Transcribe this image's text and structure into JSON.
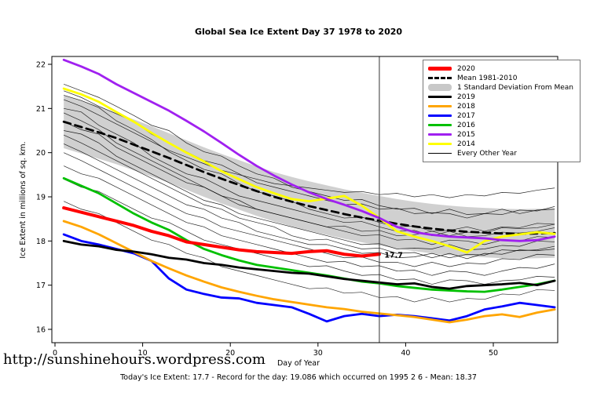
{
  "footer": {
    "url": "http://sunshinehours.wordpress.com",
    "caption": "Today's Ice Extent: 17.7 - Record for the day: 19.086 which occurred on 1995 2 6 - Mean: 18.37"
  },
  "chart_data": {
    "type": "line",
    "title": "Global Sea Ice Extent Day 37 1978 to 2020",
    "xlabel": "Day of Year",
    "ylabel": "Ice Extent in millions of sq. km.",
    "xlim": [
      0,
      57
    ],
    "ylim": [
      15.7,
      22.2
    ],
    "xticks": [
      0,
      10,
      20,
      30,
      40,
      50
    ],
    "yticks": [
      16,
      17,
      18,
      19,
      20,
      21,
      22
    ],
    "grid": false,
    "vline": {
      "x": 37,
      "color": "#333333"
    },
    "annotation": {
      "text": "17.7",
      "x": 37.4,
      "y": 17.68,
      "color": "#FF0000"
    },
    "x": [
      1,
      3,
      5,
      7,
      9,
      11,
      13,
      15,
      17,
      19,
      21,
      23,
      25,
      27,
      29,
      31,
      33,
      35,
      37,
      39,
      41,
      43,
      45,
      47,
      49,
      51,
      53,
      55,
      57
    ],
    "band": {
      "name": "1 Standard Deviation From Mean",
      "color": "#C8C8C8",
      "upper": [
        21.3,
        21.18,
        21.05,
        20.9,
        20.75,
        20.6,
        20.44,
        20.28,
        20.12,
        19.97,
        19.83,
        19.69,
        19.56,
        19.45,
        19.35,
        19.26,
        19.17,
        19.09,
        19.02,
        18.95,
        18.89,
        18.84,
        18.8,
        18.77,
        18.75,
        18.73,
        18.72,
        18.73,
        18.74
      ],
      "lower": [
        20.1,
        19.98,
        19.86,
        19.74,
        19.6,
        19.46,
        19.32,
        19.16,
        19.0,
        18.85,
        18.71,
        18.57,
        18.44,
        18.33,
        18.23,
        18.14,
        18.05,
        17.97,
        17.9,
        17.83,
        17.77,
        17.72,
        17.68,
        17.65,
        17.63,
        17.61,
        17.6,
        17.61,
        17.62
      ]
    },
    "series": [
      {
        "name": "Mean 1981-2010",
        "color": "#000000",
        "style": "dashed",
        "width": 2.8,
        "values": [
          20.7,
          20.58,
          20.46,
          20.33,
          20.18,
          20.03,
          19.88,
          19.72,
          19.56,
          19.41,
          19.27,
          19.13,
          19.0,
          18.89,
          18.79,
          18.7,
          18.61,
          18.53,
          18.46,
          18.39,
          18.33,
          18.28,
          18.24,
          18.21,
          18.19,
          18.17,
          18.16,
          18.17,
          18.18
        ]
      },
      {
        "name": "2014",
        "color": "#FFFF00",
        "style": "solid",
        "width": 2.8,
        "values": [
          21.45,
          21.32,
          21.15,
          20.92,
          20.7,
          20.45,
          20.22,
          20.0,
          19.8,
          19.58,
          19.4,
          19.22,
          19.08,
          18.95,
          18.9,
          18.96,
          19.02,
          18.8,
          18.52,
          18.22,
          18.1,
          18.0,
          17.88,
          17.74,
          18.0,
          18.1,
          18.15,
          18.2,
          18.16
        ]
      },
      {
        "name": "2015",
        "color": "#A020F0",
        "style": "solid",
        "width": 2.8,
        "values": [
          22.1,
          21.95,
          21.78,
          21.55,
          21.35,
          21.15,
          20.95,
          20.72,
          20.48,
          20.22,
          19.95,
          19.7,
          19.48,
          19.28,
          19.1,
          18.95,
          18.82,
          18.68,
          18.52,
          18.32,
          18.2,
          18.14,
          18.1,
          18.08,
          18.06,
          18.02,
          18.0,
          18.02,
          18.1
        ]
      },
      {
        "name": "2016",
        "color": "#00C000",
        "style": "solid",
        "width": 2.8,
        "values": [
          19.42,
          19.25,
          19.08,
          18.85,
          18.62,
          18.42,
          18.25,
          18.02,
          17.82,
          17.68,
          17.56,
          17.46,
          17.4,
          17.34,
          17.28,
          17.22,
          17.15,
          17.08,
          17.04,
          16.98,
          16.94,
          16.9,
          16.88,
          16.86,
          16.85,
          16.9,
          16.96,
          17.02,
          17.1
        ]
      },
      {
        "name": "2017",
        "color": "#0000FF",
        "style": "solid",
        "width": 2.8,
        "values": [
          18.15,
          18.0,
          17.92,
          17.82,
          17.72,
          17.55,
          17.15,
          16.9,
          16.8,
          16.72,
          16.7,
          16.6,
          16.55,
          16.5,
          16.35,
          16.18,
          16.3,
          16.35,
          16.3,
          16.33,
          16.3,
          16.25,
          16.2,
          16.3,
          16.45,
          16.52,
          16.6,
          16.55,
          16.5
        ]
      },
      {
        "name": "2018",
        "color": "#FFA500",
        "style": "solid",
        "width": 2.8,
        "values": [
          18.45,
          18.32,
          18.15,
          17.95,
          17.75,
          17.55,
          17.38,
          17.22,
          17.08,
          16.95,
          16.85,
          16.76,
          16.68,
          16.62,
          16.56,
          16.5,
          16.46,
          16.4,
          16.36,
          16.32,
          16.28,
          16.22,
          16.16,
          16.22,
          16.3,
          16.34,
          16.28,
          16.38,
          16.45
        ]
      },
      {
        "name": "2019",
        "color": "#000000",
        "style": "solid",
        "width": 2.8,
        "values": [
          18.0,
          17.92,
          17.88,
          17.8,
          17.76,
          17.7,
          17.62,
          17.58,
          17.5,
          17.46,
          17.4,
          17.36,
          17.32,
          17.28,
          17.26,
          17.2,
          17.14,
          17.1,
          17.06,
          17.02,
          17.04,
          16.96,
          16.92,
          16.98,
          17.0,
          17.02,
          17.05,
          17.0,
          17.1
        ]
      },
      {
        "name": "2020",
        "color": "#FF0000",
        "style": "solid",
        "width": 4,
        "x": [
          1,
          3,
          5,
          7,
          9,
          11,
          13,
          15,
          17,
          19,
          21,
          23,
          25,
          27,
          29,
          31,
          33,
          35,
          37
        ],
        "values": [
          18.75,
          18.65,
          18.55,
          18.45,
          18.35,
          18.22,
          18.12,
          17.98,
          17.92,
          17.86,
          17.8,
          17.76,
          17.74,
          17.72,
          17.76,
          17.78,
          17.7,
          17.66,
          17.7
        ]
      }
    ],
    "other_years": {
      "name": "Every Other Year",
      "color": "#000000",
      "width": 0.7,
      "series": [
        [
          21.55,
          21.4,
          21.25,
          21.05,
          20.84,
          20.62,
          20.5,
          20.22,
          20.02,
          19.92,
          19.7,
          19.52,
          19.42,
          19.22,
          19.12,
          19.02,
          18.92,
          18.94,
          18.8,
          18.72,
          18.74,
          18.62,
          18.72,
          18.6,
          18.62,
          18.72,
          18.62,
          18.7,
          18.72
        ],
        [
          21.3,
          21.18,
          21.02,
          20.72,
          20.52,
          20.3,
          20.02,
          19.82,
          19.62,
          19.52,
          19.3,
          19.12,
          19.02,
          18.9,
          18.72,
          18.62,
          18.52,
          18.54,
          18.42,
          18.32,
          18.34,
          18.22,
          18.24,
          18.32,
          18.22,
          18.32,
          18.3,
          18.4,
          18.38
        ],
        [
          20.9,
          20.72,
          20.52,
          20.22,
          20.02,
          19.82,
          19.62,
          19.42,
          19.22,
          19.02,
          18.92,
          18.72,
          18.62,
          18.52,
          18.42,
          18.32,
          18.22,
          18.12,
          18.14,
          18.02,
          18.04,
          17.92,
          18.02,
          18.0,
          17.92,
          18.02,
          18.0,
          18.1,
          18.08
        ],
        [
          20.5,
          20.42,
          20.22,
          19.92,
          19.72,
          19.52,
          19.32,
          19.12,
          18.92,
          18.82,
          18.62,
          18.52,
          18.42,
          18.32,
          18.22,
          18.12,
          18.02,
          17.92,
          17.94,
          17.82,
          17.84,
          17.82,
          17.92,
          17.8,
          17.82,
          17.9,
          17.88,
          18.0,
          17.98
        ],
        [
          20.2,
          20.02,
          19.82,
          19.62,
          19.42,
          19.22,
          19.02,
          18.82,
          18.72,
          18.52,
          18.42,
          18.22,
          18.12,
          18.02,
          17.92,
          17.92,
          17.82,
          17.72,
          17.74,
          17.62,
          17.64,
          17.72,
          17.62,
          17.7,
          17.68,
          17.8,
          17.78,
          17.8,
          17.88
        ],
        [
          20.0,
          19.82,
          19.62,
          19.42,
          19.22,
          19.02,
          18.82,
          18.62,
          18.52,
          18.32,
          18.22,
          18.12,
          18.02,
          17.92,
          17.82,
          17.72,
          17.62,
          17.64,
          17.52,
          17.52,
          17.42,
          17.52,
          17.42,
          17.5,
          17.48,
          17.6,
          17.58,
          17.7,
          17.68
        ],
        [
          19.7,
          19.52,
          19.42,
          19.22,
          19.02,
          18.82,
          18.62,
          18.42,
          18.32,
          18.12,
          18.02,
          17.92,
          17.82,
          17.72,
          17.62,
          17.52,
          17.54,
          17.42,
          17.44,
          17.32,
          17.34,
          17.22,
          17.32,
          17.3,
          17.22,
          17.32,
          17.4,
          17.38,
          17.48
        ],
        [
          21.4,
          21.25,
          21.05,
          20.88,
          20.7,
          20.42,
          20.22,
          20.02,
          19.82,
          19.72,
          19.52,
          19.32,
          19.22,
          19.12,
          19.02,
          18.92,
          18.82,
          18.84,
          18.72,
          18.74,
          18.62,
          18.64,
          18.62,
          18.52,
          18.62,
          18.6,
          18.7,
          18.68,
          18.78
        ],
        [
          20.7,
          20.52,
          20.42,
          20.12,
          19.92,
          19.72,
          19.52,
          19.32,
          19.22,
          19.02,
          18.82,
          18.72,
          18.62,
          18.52,
          18.42,
          18.32,
          18.34,
          18.22,
          18.24,
          18.12,
          18.14,
          18.22,
          18.12,
          18.2,
          18.18,
          18.3,
          18.28,
          18.3,
          18.38
        ],
        [
          19.4,
          19.22,
          19.12,
          18.92,
          18.72,
          18.52,
          18.42,
          18.22,
          18.02,
          17.92,
          17.82,
          17.72,
          17.62,
          17.52,
          17.42,
          17.44,
          17.32,
          17.22,
          17.24,
          17.12,
          17.14,
          17.02,
          17.12,
          17.1,
          17.02,
          17.1,
          17.12,
          17.2,
          17.18
        ],
        [
          21.0,
          20.92,
          20.62,
          20.42,
          20.22,
          19.92,
          19.72,
          19.52,
          19.42,
          19.22,
          19.02,
          18.92,
          18.82,
          18.72,
          18.62,
          18.52,
          18.42,
          18.44,
          18.32,
          18.22,
          18.24,
          18.12,
          18.22,
          18.1,
          18.12,
          18.2,
          18.18,
          18.22,
          18.3
        ],
        [
          20.4,
          20.22,
          20.02,
          19.82,
          19.62,
          19.42,
          19.22,
          19.02,
          18.82,
          18.72,
          18.52,
          18.42,
          18.32,
          18.12,
          18.02,
          18.04,
          17.92,
          17.82,
          17.84,
          17.72,
          17.74,
          17.62,
          17.72,
          17.6,
          17.72,
          17.7,
          17.8,
          17.78,
          17.82
        ],
        [
          18.9,
          18.72,
          18.62,
          18.42,
          18.22,
          18.02,
          17.92,
          17.72,
          17.62,
          17.42,
          17.32,
          17.22,
          17.12,
          17.02,
          16.92,
          16.94,
          16.82,
          16.84,
          16.72,
          16.74,
          16.62,
          16.72,
          16.62,
          16.7,
          16.68,
          16.8,
          16.78,
          16.9,
          16.88
        ],
        [
          21.2,
          21.05,
          20.85,
          20.65,
          20.45,
          20.25,
          20.05,
          19.9,
          19.75,
          19.6,
          19.5,
          19.4,
          19.3,
          19.25,
          19.2,
          19.15,
          19.1,
          19.12,
          19.05,
          19.08,
          19.0,
          19.05,
          18.98,
          19.05,
          19.02,
          19.1,
          19.08,
          19.15,
          19.2
        ]
      ]
    },
    "legend": {
      "position": "top-right",
      "items": [
        {
          "label": "2020",
          "color": "#FF0000",
          "style": "xthick"
        },
        {
          "label": "Mean 1981-2010",
          "color": "#000000",
          "style": "dashed"
        },
        {
          "label": "1 Standard Deviation From Mean",
          "color": "#C8C8C8",
          "style": "band"
        },
        {
          "label": "2019",
          "color": "#000000",
          "style": "thick"
        },
        {
          "label": "2018",
          "color": "#FFA500",
          "style": "thick"
        },
        {
          "label": "2017",
          "color": "#0000FF",
          "style": "thick"
        },
        {
          "label": "2016",
          "color": "#00C000",
          "style": "thick"
        },
        {
          "label": "2015",
          "color": "#A020F0",
          "style": "thick"
        },
        {
          "label": "2014",
          "color": "#FFFF00",
          "style": "thick"
        },
        {
          "label": "Every Other Year",
          "color": "#000000",
          "style": "thin"
        }
      ]
    }
  }
}
